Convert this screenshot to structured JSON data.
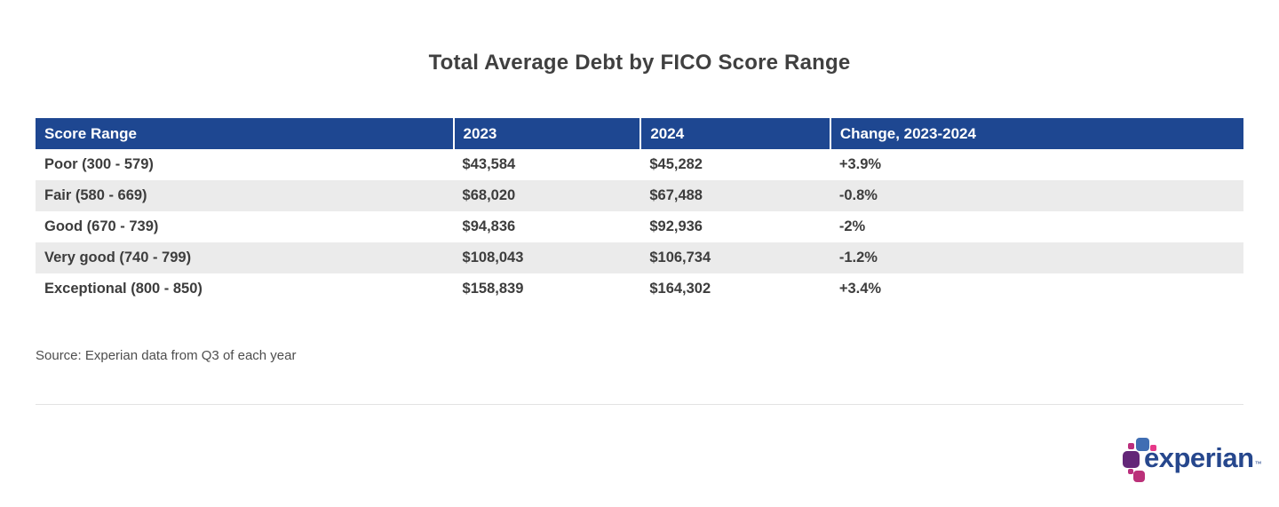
{
  "title": "Total Average Debt by FICO Score Range",
  "table": {
    "columns": [
      "Score Range",
      "2023",
      "2024",
      "Change, 2023-2024"
    ],
    "rows": [
      [
        "Poor (300 - 579)",
        "$43,584",
        "$45,282",
        "+3.9%"
      ],
      [
        "Fair (580 - 669)",
        "$68,020",
        "$67,488",
        "-0.8%"
      ],
      [
        "Good (670 - 739)",
        "$94,836",
        "$92,936",
        "-2%"
      ],
      [
        "Very good (740 - 799)",
        "$108,043",
        "$106,734",
        "-1.2%"
      ],
      [
        "Exceptional (800 - 850)",
        "$158,839",
        "$164,302",
        "+3.4%"
      ]
    ]
  },
  "source": "Source: Experian data from Q3 of each year",
  "logo": {
    "wordmark": "experian",
    "trademark": "™"
  },
  "colors": {
    "header_bg": "#1e4791",
    "header_text": "#ffffff",
    "row_alt_bg": "#ebebeb",
    "body_text": "#3d3d3d",
    "title_text": "#404040",
    "divider": "#e3e3e3",
    "logo_blue": "#406eb3",
    "logo_purple": "#632678",
    "logo_magenta": "#ba2f7d",
    "logo_pink": "#e63888",
    "wordmark_color": "#26478d"
  },
  "chart_data": {
    "type": "table",
    "title": "Total Average Debt by FICO Score Range",
    "categories": [
      "Poor (300 - 579)",
      "Fair (580 - 669)",
      "Good (670 - 739)",
      "Very good (740 - 799)",
      "Exceptional (800 - 850)"
    ],
    "series": [
      {
        "name": "2023",
        "values": [
          43584,
          68020,
          94836,
          108043,
          158839
        ]
      },
      {
        "name": "2024",
        "values": [
          45282,
          67488,
          92936,
          106734,
          164302
        ]
      },
      {
        "name": "Change, 2023-2024",
        "values": [
          "+3.9%",
          "-0.8%",
          "-2%",
          "-1.2%",
          "+3.4%"
        ]
      }
    ],
    "column_headers": [
      "Score Range",
      "2023",
      "2024",
      "Change, 2023-2024"
    ],
    "source": "Source: Experian data from Q3 of each year",
    "layout_hints": {
      "header_style": "navy-with-white-text",
      "alternating_rows": true,
      "grid": false
    }
  }
}
